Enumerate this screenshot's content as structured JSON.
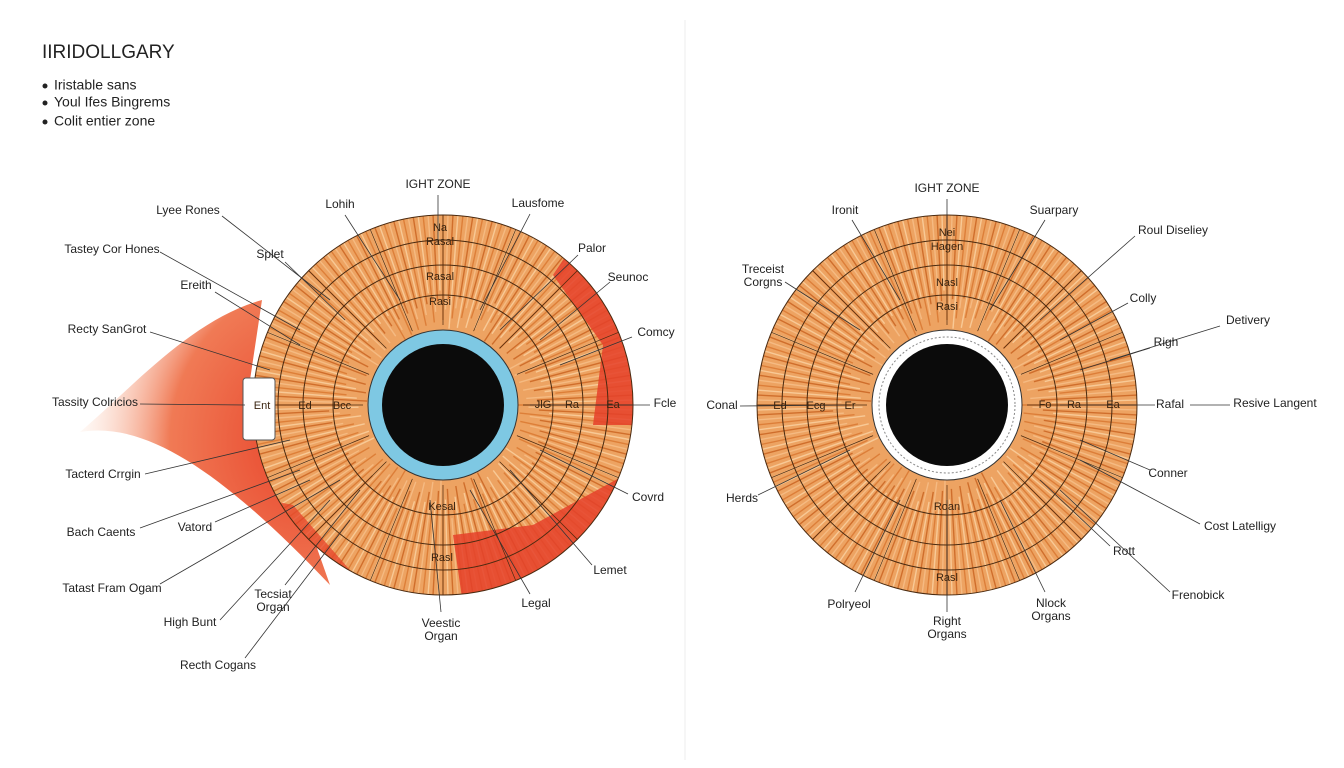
{
  "header": {
    "title": "IIRIDOLLGARY",
    "bullets": [
      "Iristable sans",
      "Youl Ifes Bingrems",
      "Colit entier zone"
    ]
  },
  "left_iris": {
    "top_label": "IGHT ZONE",
    "labels": [
      "Lohih",
      "Lausfome",
      "Lyee Rones",
      "Splet",
      "Palor",
      "Tastey Cor Hones",
      "Seunoc",
      "Ereith",
      "Recty SanGrot",
      "Comcy",
      "Tassity Colricios",
      "Fcle",
      "Tacterd Crrgin",
      "Covrd",
      "Bach Caents",
      "Vatord",
      "Lemet",
      "Tatast Fram Ogam",
      [
        "Tecsiat",
        "Organ"
      ],
      "Legal",
      "High Bunt",
      [
        "Veestic",
        "Organ"
      ],
      "Recth Cogans"
    ],
    "zone_labels": [
      "Na",
      "Rasal",
      "Rasal",
      "Rasi",
      "Ent",
      "Ed",
      "Bcc",
      "JlG",
      "Ra",
      "Ea",
      "Kesal",
      "Rasl"
    ]
  },
  "right_iris": {
    "top_label": "IGHT ZONE",
    "labels": [
      "Ironit",
      "Suarpary",
      "Roul Diseliey",
      [
        "Treceist",
        "Corgns"
      ],
      "Colly",
      "Detivery",
      "Righ",
      "Conal",
      "Rafal",
      "Resive Langent",
      "Conner",
      "Herds",
      "Cost Latelligy",
      "Rott",
      "Frenobick",
      "Polryeol",
      [
        "Right",
        "Organs"
      ],
      [
        "Nlock",
        "Organs"
      ]
    ],
    "zone_labels": [
      "Nei",
      "Hagen",
      "Nasl",
      "Rasi",
      "Ed",
      "Ecg",
      "Er",
      "Fo",
      "Ra",
      "Ea",
      "Roan",
      "Rasl"
    ]
  }
}
